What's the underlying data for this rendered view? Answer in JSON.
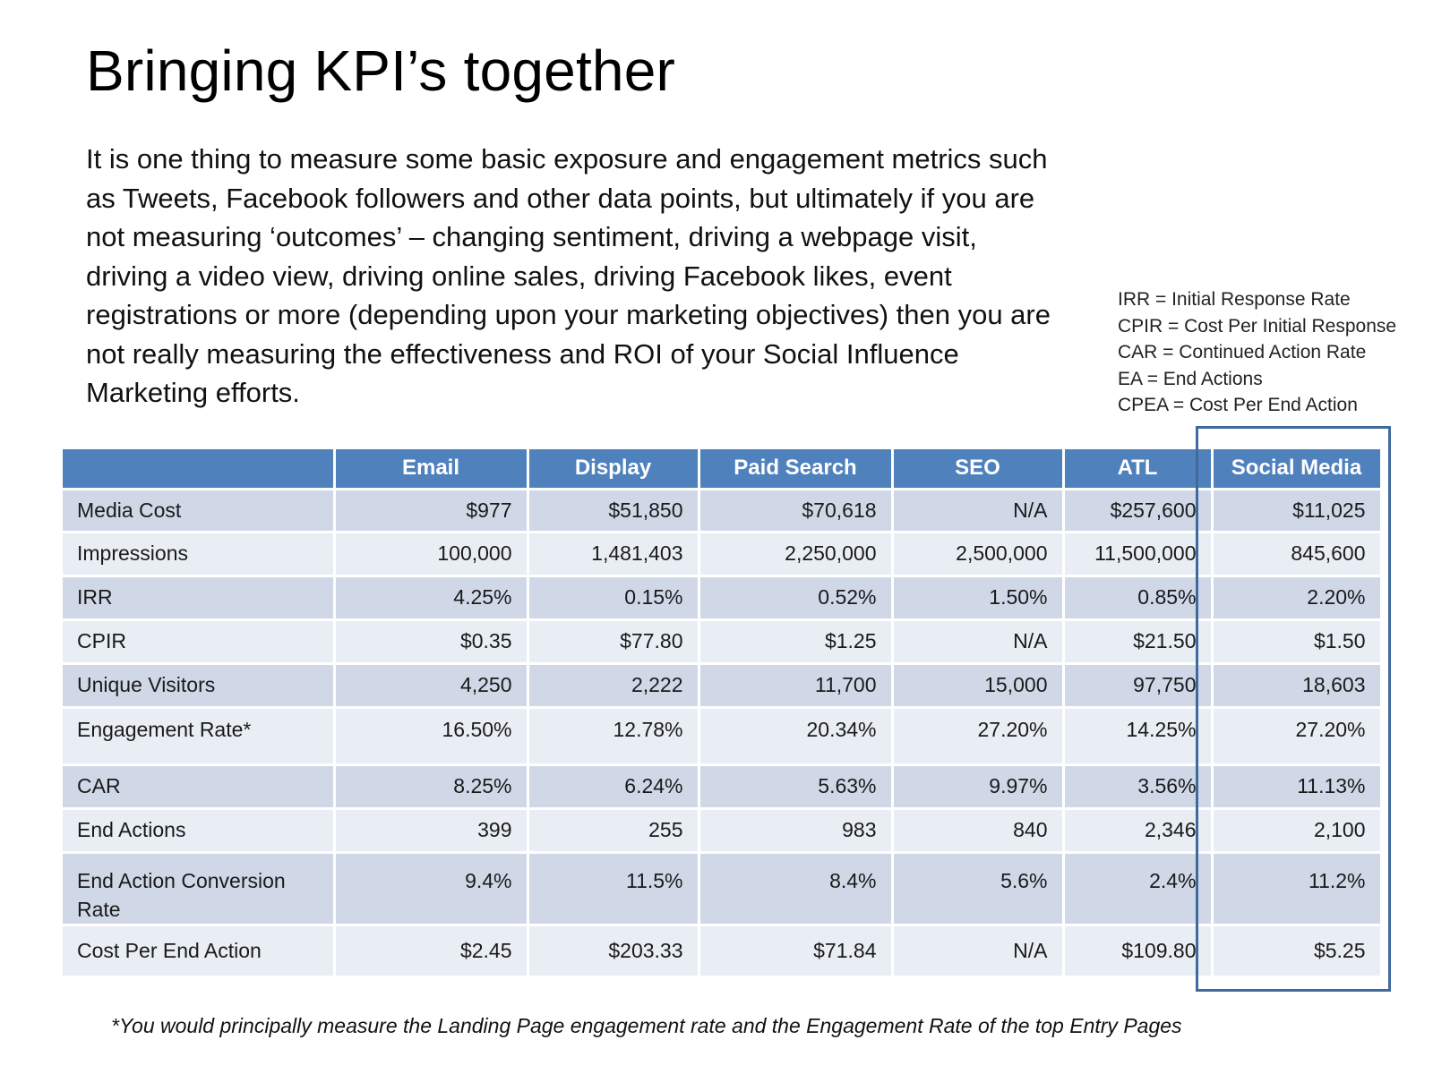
{
  "title": "Bringing KPI’s together",
  "intro": "It is one thing to measure some basic exposure and engagement metrics such as Tweets, Facebook followers and other data points, but ultimately if you are not measuring ‘outcomes’ – changing sentiment, driving a webpage visit, driving a video view, driving online sales, driving Facebook likes, event registrations or more (depending upon your marketing objectives) then you are not really measuring the effectiveness and ROI of your Social Influence Marketing efforts.",
  "legend": [
    "IRR = Initial Response Rate",
    "CPIR = Cost Per Initial Response",
    "CAR = Continued Action Rate",
    "EA = End Actions",
    "CPEA = Cost Per End Action"
  ],
  "table": {
    "columns": [
      "",
      "Email",
      "Display",
      "Paid Search",
      "SEO",
      "ATL",
      "Social Media"
    ],
    "rows": [
      {
        "label": "Media Cost",
        "values": [
          "$977",
          "$51,850",
          "$70,618",
          "N/A",
          "$257,600",
          "$11,025"
        ]
      },
      {
        "label": "Impressions",
        "values": [
          "100,000",
          "1,481,403",
          "2,250,000",
          "2,500,000",
          "11,500,000",
          "845,600"
        ]
      },
      {
        "label": "IRR",
        "values": [
          "4.25%",
          "0.15%",
          "0.52%",
          "1.50%",
          "0.85%",
          "2.20%"
        ]
      },
      {
        "label": "CPIR",
        "values": [
          "$0.35",
          "$77.80",
          "$1.25",
          "N/A",
          "$21.50",
          "$1.50"
        ]
      },
      {
        "label": "Unique Visitors",
        "values": [
          "4,250",
          "2,222",
          "11,700",
          "15,000",
          "97,750",
          "18,603"
        ]
      },
      {
        "label": "Engagement Rate*",
        "values": [
          "16.50%",
          "12.78%",
          "20.34%",
          "27.20%",
          "14.25%",
          "27.20%"
        ]
      },
      {
        "label": "CAR",
        "values": [
          "8.25%",
          "6.24%",
          "5.63%",
          "9.97%",
          "3.56%",
          "11.13%"
        ]
      },
      {
        "label": "End Actions",
        "values": [
          "399",
          "255",
          "983",
          "840",
          "2,346",
          "2,100"
        ]
      },
      {
        "label": "End Action Conversion Rate",
        "values": [
          "9.4%",
          "11.5%",
          "8.4%",
          "5.6%",
          "2.4%",
          "11.2%"
        ]
      },
      {
        "label": "Cost Per End Action",
        "values": [
          "$2.45",
          "$203.33",
          "$71.84",
          "N/A",
          "$109.80",
          "$5.25"
        ]
      }
    ]
  },
  "footnote": "*You would principally measure the Landing Page engagement rate and the Engagement Rate of the top Entry Pages",
  "colors": {
    "header": "#4f81bd",
    "row_dark": "#d0d8e8",
    "row_light": "#e9edf4",
    "highlight_border": "#3f6a9d"
  }
}
